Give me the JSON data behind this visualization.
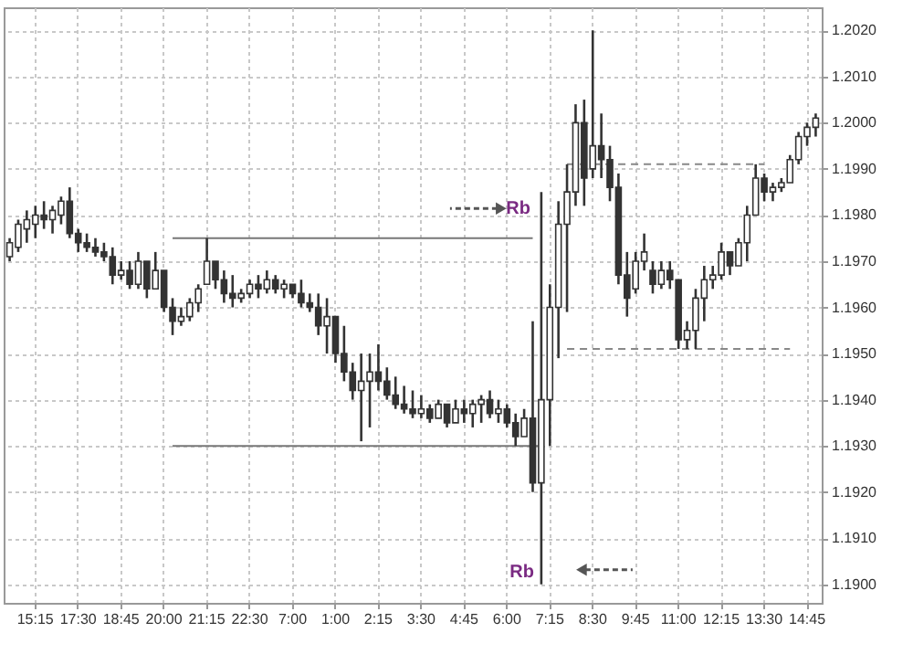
{
  "chart_data": {
    "type": "candlestick",
    "color": "#333333",
    "categories": [
      null,
      null,
      null,
      "15:15",
      null,
      null,
      null,
      null,
      "17:30",
      null,
      null,
      null,
      null,
      "18:45",
      null,
      null,
      null,
      null,
      "20:00",
      null,
      null,
      null,
      null,
      "21:15",
      null,
      null,
      null,
      null,
      "22:30",
      null,
      null,
      null,
      null,
      "7:00",
      null,
      null,
      null,
      null,
      "1:00",
      null,
      null,
      null,
      null,
      "2:15",
      null,
      null,
      null,
      null,
      "3:30",
      null,
      null,
      null,
      null,
      "4:45",
      null,
      null,
      null,
      null,
      "6:00",
      null,
      null,
      null,
      null,
      "7:15",
      null,
      null,
      null,
      null,
      "8:30",
      null,
      null,
      null,
      null,
      "9:45",
      null,
      null,
      null,
      null,
      "11:00",
      null,
      null,
      null,
      null,
      "12:15",
      null,
      null,
      null,
      null,
      "13:30",
      null,
      null,
      null,
      null,
      "14:45",
      null
    ],
    "ohlc": [
      [
        1.1971,
        1.1975,
        1.197,
        1.1974
      ],
      [
        1.1973,
        1.1979,
        1.1972,
        1.1978
      ],
      [
        1.1977,
        1.1981,
        1.1974,
        1.1979
      ],
      [
        1.1978,
        1.1982,
        1.1975,
        1.198
      ],
      [
        1.198,
        1.1983,
        1.1977,
        1.1979
      ],
      [
        1.1979,
        1.1982,
        1.1976,
        1.1981
      ],
      [
        1.198,
        1.1984,
        1.1978,
        1.1983
      ],
      [
        1.1983,
        1.1986,
        1.1975,
        1.1976
      ],
      [
        1.1976,
        1.1977,
        1.1972,
        1.1974
      ],
      [
        1.1974,
        1.1976,
        1.1972,
        1.1973
      ],
      [
        1.1973,
        1.1975,
        1.1971,
        1.1972
      ],
      [
        1.1972,
        1.1974,
        1.197,
        1.1971
      ],
      [
        1.1971,
        1.1973,
        1.1965,
        1.1967
      ],
      [
        1.1967,
        1.197,
        1.1966,
        1.1968
      ],
      [
        1.1968,
        1.197,
        1.1964,
        1.1965
      ],
      [
        1.1965,
        1.1972,
        1.1964,
        1.197
      ],
      [
        1.197,
        1.197,
        1.1962,
        1.1964
      ],
      [
        1.1964,
        1.1972,
        1.1964,
        1.1968
      ],
      [
        1.1968,
        1.1968,
        1.1959,
        1.196
      ],
      [
        1.196,
        1.1962,
        1.1954,
        1.1957
      ],
      [
        1.1957,
        1.196,
        1.1956,
        1.1958
      ],
      [
        1.1958,
        1.1962,
        1.1957,
        1.1961
      ],
      [
        1.1961,
        1.1965,
        1.1959,
        1.1964
      ],
      [
        1.1965,
        1.1975,
        1.1965,
        1.197
      ],
      [
        1.197,
        1.197,
        1.1964,
        1.1966
      ],
      [
        1.1966,
        1.1968,
        1.1961,
        1.1963
      ],
      [
        1.1963,
        1.1967,
        1.196,
        1.1962
      ],
      [
        1.1962,
        1.1964,
        1.1961,
        1.1963
      ],
      [
        1.1963,
        1.1966,
        1.1962,
        1.1965
      ],
      [
        1.1965,
        1.1967,
        1.1962,
        1.1964
      ],
      [
        1.1964,
        1.1968,
        1.1963,
        1.1966
      ],
      [
        1.1966,
        1.1967,
        1.1963,
        1.1964
      ],
      [
        1.1964,
        1.1966,
        1.1962,
        1.1965
      ],
      [
        1.1965,
        1.1965,
        1.1962,
        1.1963
      ],
      [
        1.1963,
        1.1966,
        1.196,
        1.1961
      ],
      [
        1.1961,
        1.1963,
        1.1959,
        1.196
      ],
      [
        1.196,
        1.1963,
        1.1954,
        1.1956
      ],
      [
        1.1956,
        1.1962,
        1.195,
        1.1958
      ],
      [
        1.1958,
        1.1958,
        1.1948,
        1.195
      ],
      [
        1.195,
        1.1956,
        1.1944,
        1.1946
      ],
      [
        1.1946,
        1.1948,
        1.194,
        1.1942
      ],
      [
        1.1942,
        1.195,
        1.1931,
        1.1944
      ],
      [
        1.1944,
        1.195,
        1.1934,
        1.1946
      ],
      [
        1.1946,
        1.1952,
        1.1942,
        1.1944
      ],
      [
        1.1944,
        1.1947,
        1.194,
        1.1941
      ],
      [
        1.1941,
        1.1945,
        1.1938,
        1.1939
      ],
      [
        1.1939,
        1.1943,
        1.1937,
        1.1938
      ],
      [
        1.1938,
        1.1942,
        1.1936,
        1.1937
      ],
      [
        1.1937,
        1.1941,
        1.1936,
        1.1938
      ],
      [
        1.1938,
        1.1939,
        1.1935,
        1.1936
      ],
      [
        1.1936,
        1.194,
        1.1936,
        1.1939
      ],
      [
        1.1939,
        1.1939,
        1.1934,
        1.1935
      ],
      [
        1.1935,
        1.194,
        1.1935,
        1.1938
      ],
      [
        1.1938,
        1.194,
        1.1935,
        1.1937
      ],
      [
        1.1937,
        1.194,
        1.1934,
        1.1939
      ],
      [
        1.1939,
        1.1941,
        1.1935,
        1.194
      ],
      [
        1.194,
        1.1942,
        1.1936,
        1.1937
      ],
      [
        1.1937,
        1.194,
        1.1935,
        1.1938
      ],
      [
        1.1938,
        1.1939,
        1.1934,
        1.1935
      ],
      [
        1.1935,
        1.1937,
        1.193,
        1.1932
      ],
      [
        1.1932,
        1.1938,
        1.1932,
        1.1936
      ],
      [
        1.1936,
        1.1957,
        1.192,
        1.1922
      ],
      [
        1.1922,
        1.1985,
        1.19,
        1.194
      ],
      [
        1.194,
        1.1965,
        1.193,
        1.196
      ],
      [
        1.196,
        1.1983,
        1.1949,
        1.1978
      ],
      [
        1.1978,
        1.1991,
        1.1959,
        1.1985
      ],
      [
        1.1985,
        1.2004,
        1.1982,
        1.2
      ],
      [
        1.2,
        1.2005,
        1.1982,
        1.1988
      ],
      [
        1.199,
        1.202,
        1.1988,
        1.1995
      ],
      [
        1.1995,
        1.2002,
        1.1988,
        1.1992
      ],
      [
        1.1992,
        1.1995,
        1.1983,
        1.1986
      ],
      [
        1.1986,
        1.1989,
        1.1965,
        1.1967
      ],
      [
        1.1967,
        1.1972,
        1.1958,
        1.1962
      ],
      [
        1.1964,
        1.1972,
        1.1963,
        1.197
      ],
      [
        1.197,
        1.1976,
        1.1968,
        1.1972
      ],
      [
        1.1968,
        1.197,
        1.1963,
        1.1965
      ],
      [
        1.1965,
        1.197,
        1.1964,
        1.1968
      ],
      [
        1.1968,
        1.197,
        1.1964,
        1.1966
      ],
      [
        1.1966,
        1.1966,
        1.1951,
        1.1953
      ],
      [
        1.1953,
        1.1957,
        1.1951,
        1.1955
      ],
      [
        1.1955,
        1.1964,
        1.1951,
        1.1962
      ],
      [
        1.1962,
        1.1969,
        1.1957,
        1.1966
      ],
      [
        1.1966,
        1.1969,
        1.1964,
        1.1967
      ],
      [
        1.1967,
        1.1974,
        1.1966,
        1.1972
      ],
      [
        1.1972,
        1.1972,
        1.1967,
        1.1969
      ],
      [
        1.1969,
        1.1975,
        1.1969,
        1.1974
      ],
      [
        1.1974,
        1.1982,
        1.197,
        1.198
      ],
      [
        1.198,
        1.1991,
        1.198,
        1.1988
      ],
      [
        1.1988,
        1.1989,
        1.1983,
        1.1985
      ],
      [
        1.1985,
        1.1987,
        1.1983,
        1.1986
      ],
      [
        1.1986,
        1.1988,
        1.1985,
        1.1987
      ],
      [
        1.1987,
        1.1993,
        1.1987,
        1.1992
      ],
      [
        1.1992,
        1.1998,
        1.1991,
        1.1997
      ],
      [
        1.1997,
        1.2,
        1.1995,
        1.1999
      ],
      [
        1.1999,
        1.2002,
        1.1997,
        1.2001
      ]
    ],
    "series": [
      {
        "type": "line",
        "color": "#777777",
        "line_style": "solid",
        "values": [
          null,
          null,
          null,
          null,
          null,
          null,
          null,
          null,
          null,
          null,
          null,
          null,
          null,
          null,
          null,
          null,
          null,
          null,
          null,
          1.1975,
          1.1975,
          1.1975,
          1.1975,
          1.1975,
          1.1975,
          1.1975,
          1.1975,
          1.1975,
          1.1975,
          1.1975,
          1.1975,
          1.1975,
          1.1975,
          1.1975,
          1.1975,
          1.1975,
          1.1975,
          1.1975,
          1.1975,
          1.1975,
          1.1975,
          1.1975,
          1.1975,
          1.1975,
          1.1975,
          1.1975,
          1.1975,
          1.1975,
          1.1975,
          1.1975,
          1.1975,
          1.1975,
          1.1975,
          1.1975,
          1.1975,
          1.1975,
          1.1975,
          1.1975,
          1.1975,
          1.1975,
          1.1975,
          1.1975,
          null,
          null,
          null,
          null,
          null,
          null,
          null,
          null,
          null,
          null,
          null,
          null,
          null,
          null,
          null,
          null,
          null,
          null,
          null,
          null,
          null,
          null,
          null,
          null,
          null,
          null,
          null,
          null,
          null,
          null,
          null,
          null,
          null
        ]
      },
      {
        "type": "line",
        "color": "#777777",
        "line_style": "solid",
        "values": [
          null,
          null,
          null,
          null,
          null,
          null,
          null,
          null,
          null,
          null,
          null,
          null,
          null,
          null,
          null,
          null,
          null,
          null,
          null,
          1.193,
          1.193,
          1.193,
          1.193,
          1.193,
          1.193,
          1.193,
          1.193,
          1.193,
          1.193,
          1.193,
          1.193,
          1.193,
          1.193,
          1.193,
          1.193,
          1.193,
          1.193,
          1.193,
          1.193,
          1.193,
          1.193,
          1.193,
          1.193,
          1.193,
          1.193,
          1.193,
          1.193,
          1.193,
          1.193,
          1.193,
          1.193,
          1.193,
          1.193,
          1.193,
          1.193,
          1.193,
          1.193,
          1.193,
          1.193,
          1.193,
          1.193,
          1.193,
          1.193,
          null,
          null,
          null,
          null,
          null,
          null,
          null,
          null,
          null,
          null,
          null,
          null,
          null,
          null,
          null,
          null,
          null,
          null,
          null,
          null,
          null,
          null,
          null,
          null,
          null,
          null,
          null,
          null,
          null,
          null,
          null,
          null
        ]
      },
      {
        "type": "line",
        "color": "#888888",
        "line_style": "dashed",
        "values": [
          null,
          null,
          null,
          null,
          null,
          null,
          null,
          null,
          null,
          null,
          null,
          null,
          null,
          null,
          null,
          null,
          null,
          null,
          null,
          null,
          null,
          null,
          null,
          null,
          null,
          null,
          null,
          null,
          null,
          null,
          null,
          null,
          null,
          null,
          null,
          null,
          null,
          null,
          null,
          null,
          null,
          null,
          null,
          null,
          null,
          null,
          null,
          null,
          null,
          null,
          null,
          null,
          null,
          null,
          null,
          null,
          null,
          null,
          null,
          null,
          null,
          null,
          null,
          null,
          null,
          1.1991,
          1.1991,
          1.1991,
          1.1991,
          1.1991,
          1.1991,
          1.1991,
          1.1991,
          1.1991,
          1.1991,
          1.1991,
          1.1991,
          1.1991,
          1.1991,
          1.1991,
          1.1991,
          1.1991,
          1.1991,
          1.1991,
          1.1991,
          1.1991,
          1.1991,
          1.1991,
          1.1991,
          null,
          null,
          null,
          null,
          null,
          null
        ]
      },
      {
        "type": "line",
        "color": "#888888",
        "line_style": "dashed",
        "values": [
          null,
          null,
          null,
          null,
          null,
          null,
          null,
          null,
          null,
          null,
          null,
          null,
          null,
          null,
          null,
          null,
          null,
          null,
          null,
          null,
          null,
          null,
          null,
          null,
          null,
          null,
          null,
          null,
          null,
          null,
          null,
          null,
          null,
          null,
          null,
          null,
          null,
          null,
          null,
          null,
          null,
          null,
          null,
          null,
          null,
          null,
          null,
          null,
          null,
          null,
          null,
          null,
          null,
          null,
          null,
          null,
          null,
          null,
          null,
          null,
          null,
          null,
          null,
          null,
          null,
          1.1951,
          1.1951,
          1.1951,
          1.1951,
          1.1951,
          1.1951,
          1.1951,
          1.1951,
          1.1951,
          1.1951,
          1.1951,
          1.1951,
          1.1951,
          1.1951,
          1.1951,
          1.1951,
          1.1951,
          1.1951,
          1.1951,
          1.1951,
          1.1951,
          1.1951,
          1.1951,
          1.1951,
          1.1951,
          1.1951,
          1.1951,
          null,
          null,
          null
        ]
      }
    ],
    "annotations": [
      "Rb",
      "Rb"
    ],
    "ylim": [
      1.1896,
      1.2025
    ],
    "yticks": [
      {
        "value": 1.19,
        "label": "1.1900"
      },
      {
        "value": 1.191,
        "label": "1.1910"
      },
      {
        "value": 1.192,
        "label": "1.1920"
      },
      {
        "value": 1.193,
        "label": "1.1930"
      },
      {
        "value": 1.194,
        "label": "1.1940"
      },
      {
        "value": 1.195,
        "label": "1.1950"
      },
      {
        "value": 1.196,
        "label": "1.1960"
      },
      {
        "value": 1.197,
        "label": "1.1970"
      },
      {
        "value": 1.198,
        "label": "1.1980"
      },
      {
        "value": 1.199,
        "label": "1.1990"
      },
      {
        "value": 1.2,
        "label": "1.2000"
      },
      {
        "value": 1.201,
        "label": "1.2010"
      },
      {
        "value": 1.202,
        "label": "1.2020"
      }
    ],
    "grid": true
  }
}
